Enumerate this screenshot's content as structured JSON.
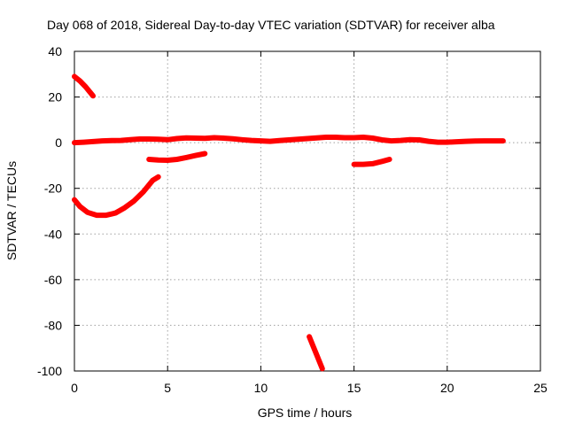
{
  "chart_data": {
    "type": "line",
    "title": "Day 068 of 2018, Sidereal Day-to-day VTEC variation (SDTVAR) for receiver alba",
    "xlabel": "GPS time / hours",
    "ylabel": "SDTVAR / TECUs",
    "xlim": [
      0,
      25
    ],
    "ylim": [
      -100,
      40
    ],
    "xticks": [
      0,
      5,
      10,
      15,
      20,
      25
    ],
    "yticks": [
      40,
      20,
      0,
      -20,
      -40,
      -60,
      -80,
      -100
    ],
    "grid": true,
    "legend": "none",
    "series_color": "#ff0000",
    "series": [
      {
        "values": [
          [
            0,
            0
          ],
          [
            0.5,
            0.2
          ],
          [
            1,
            0.5
          ],
          [
            1.5,
            0.8
          ],
          [
            2,
            0.9
          ],
          [
            2.5,
            1.0
          ],
          [
            3,
            1.3
          ],
          [
            3.5,
            1.6
          ],
          [
            4,
            1.6
          ],
          [
            4.5,
            1.5
          ],
          [
            5,
            1.3
          ],
          [
            5.5,
            1.8
          ],
          [
            6,
            2.1
          ],
          [
            6.5,
            2.0
          ],
          [
            7,
            1.9
          ],
          [
            7.5,
            2.2
          ],
          [
            8,
            2.0
          ],
          [
            8.5,
            1.7
          ],
          [
            9,
            1.3
          ],
          [
            9.5,
            1.0
          ],
          [
            10,
            0.8
          ],
          [
            10.5,
            0.6
          ],
          [
            11,
            0.9
          ],
          [
            11.5,
            1.2
          ],
          [
            12,
            1.5
          ],
          [
            12.5,
            1.8
          ],
          [
            13,
            2.1
          ],
          [
            13.5,
            2.4
          ],
          [
            14,
            2.4
          ],
          [
            14.5,
            2.2
          ],
          [
            15,
            2.2
          ],
          [
            15.5,
            2.4
          ],
          [
            16,
            2.0
          ],
          [
            16.5,
            1.2
          ],
          [
            17,
            0.8
          ],
          [
            17.5,
            1.0
          ],
          [
            18,
            1.3
          ],
          [
            18.5,
            1.2
          ],
          [
            19,
            0.6
          ],
          [
            19.5,
            0.2
          ],
          [
            20,
            0.2
          ],
          [
            20.5,
            0.4
          ],
          [
            21,
            0.6
          ],
          [
            21.5,
            0.7
          ],
          [
            22,
            0.8
          ],
          [
            22.5,
            0.8
          ],
          [
            23,
            0.8
          ]
        ]
      },
      {
        "values": [
          [
            0,
            29
          ],
          [
            0.3,
            27
          ],
          [
            0.6,
            24.5
          ],
          [
            0.9,
            21.5
          ],
          [
            1.0,
            20.5
          ]
        ]
      },
      {
        "values": [
          [
            0,
            -25
          ],
          [
            0.3,
            -28
          ],
          [
            0.7,
            -30.5
          ],
          [
            1.2,
            -31.8
          ],
          [
            1.7,
            -31.8
          ],
          [
            2.2,
            -30.8
          ],
          [
            2.7,
            -28.5
          ],
          [
            3.2,
            -25.5
          ],
          [
            3.7,
            -21.5
          ],
          [
            4.2,
            -16.5
          ],
          [
            4.5,
            -15
          ]
        ]
      },
      {
        "values": [
          [
            4,
            -7.3
          ],
          [
            4.5,
            -7.6
          ],
          [
            5,
            -7.7
          ],
          [
            5.5,
            -7.3
          ],
          [
            6,
            -6.5
          ],
          [
            6.5,
            -5.6
          ],
          [
            7,
            -4.8
          ]
        ]
      },
      {
        "values": [
          [
            12.6,
            -85
          ],
          [
            12.8,
            -89
          ],
          [
            13.0,
            -93
          ],
          [
            13.2,
            -97
          ],
          [
            13.3,
            -99
          ]
        ]
      },
      {
        "values": [
          [
            15,
            -9.5
          ],
          [
            15.5,
            -9.5
          ],
          [
            16,
            -9.2
          ],
          [
            16.5,
            -8.2
          ],
          [
            16.9,
            -7.3
          ]
        ]
      }
    ]
  }
}
